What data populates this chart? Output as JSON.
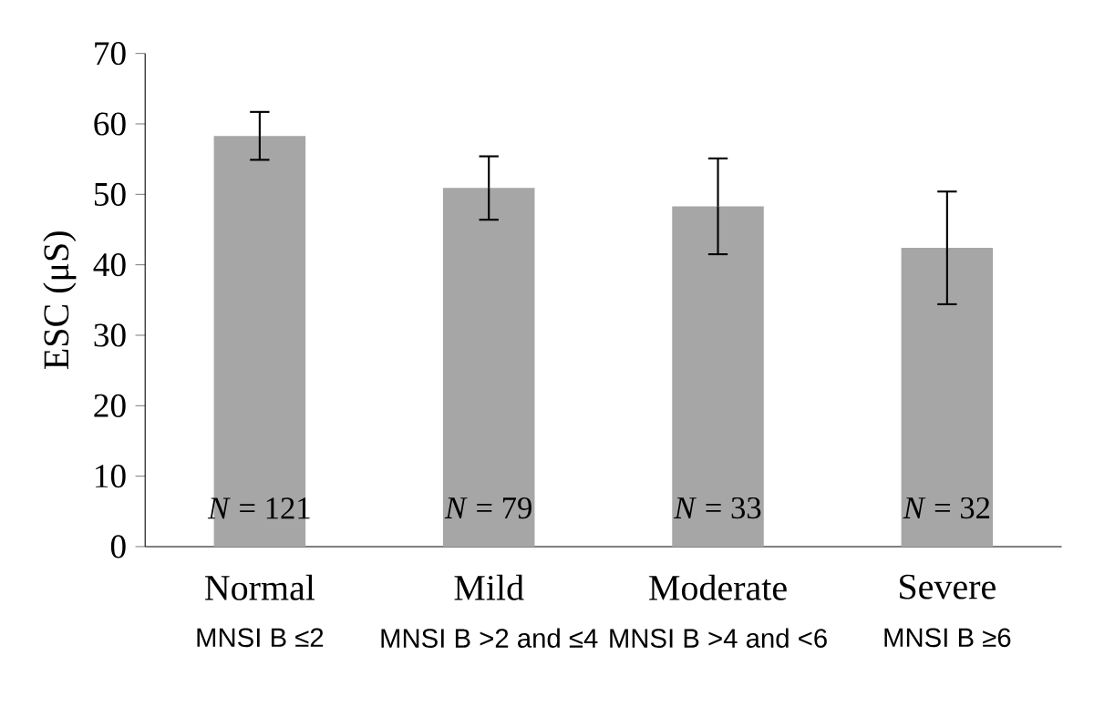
{
  "chart_data": {
    "type": "bar",
    "ylabel": "ESC (μS)",
    "categories": [
      "Normal",
      "Mild",
      "Moderate",
      "Severe"
    ],
    "values": [
      58.3,
      50.9,
      48.3,
      42.4
    ],
    "errors": [
      3.4,
      4.5,
      6.8,
      8.0
    ],
    "color": "#a6a6a6",
    "ylim": [
      0,
      70
    ],
    "yticks": [
      0,
      10,
      20,
      30,
      40,
      50,
      60,
      70
    ],
    "annotations": [
      "*N* = 121",
      "*N* = 79",
      "*N* = 33",
      "*N* = 32",
      "MNSI B  ≤2",
      "MNSI B  >2 and ≤4",
      "MNSI B  >4 and <6",
      "MNSI B  ≥6"
    ]
  }
}
